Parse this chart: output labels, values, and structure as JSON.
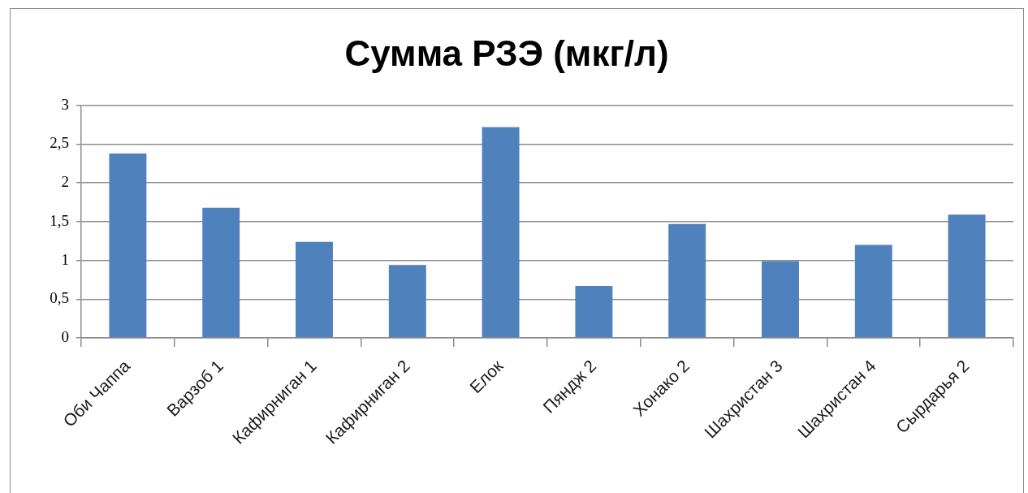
{
  "chart_data": {
    "type": "bar",
    "title": "Сумма РЗЭ (мкг/л)",
    "categories": [
      "Оби Чаппа",
      "Варзоб 1",
      "Кафирниган 1",
      "Кафирниган 2",
      "Елок",
      "Пяндж 2",
      "Хонако 2",
      "Шахристан 3",
      "Шахристан 4",
      "Сырдарья 2"
    ],
    "values": [
      2.38,
      1.68,
      1.24,
      0.94,
      2.72,
      0.67,
      1.47,
      0.99,
      1.2,
      1.59
    ],
    "color": "#4f81bd",
    "ylim": [
      0,
      3
    ],
    "yticks": [
      0,
      {
        "value": 0.5,
        "label": "0,5"
      },
      1,
      {
        "value": 1.5,
        "label": "1,5"
      },
      2,
      {
        "value": 2.5,
        "label": "2,5"
      },
      3
    ],
    "grid": "y"
  }
}
